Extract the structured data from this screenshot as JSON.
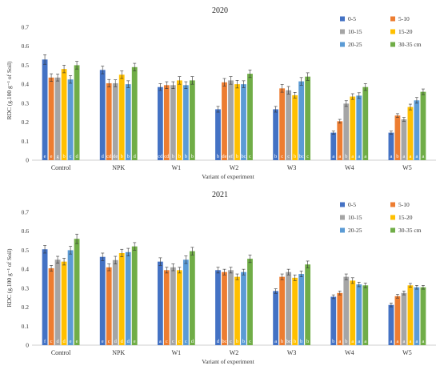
{
  "chart_data": [
    {
      "type": "bar",
      "title": "2020",
      "xlabel": "Variant of experiment",
      "ylabel": "RDC (g.100 g⁻¹ of Soil)",
      "ylim": [
        0,
        0.7
      ],
      "yticks": [
        "0",
        "0.1",
        "0.2",
        "0.3",
        "0.4",
        "0.5",
        "0.6",
        "0.7"
      ],
      "grid": false,
      "legend_position": "top-right",
      "categories": [
        "Control",
        "NPK",
        "W1",
        "W2",
        "W3",
        "W4",
        "W5"
      ],
      "series": [
        {
          "name": "0-5",
          "color": "#4472C4",
          "values": [
            0.53,
            0.475,
            0.385,
            0.268,
            0.268,
            0.145,
            0.145
          ],
          "errors": [
            0.025,
            0.02,
            0.018,
            0.015,
            0.015,
            0.008,
            0.008
          ],
          "letters": [
            "e",
            "d",
            "cd",
            "b",
            "b",
            "a",
            "a"
          ]
        },
        {
          "name": "5-10",
          "color": "#ED7D31",
          "values": [
            0.435,
            0.405,
            0.395,
            0.41,
            0.378,
            0.205,
            0.235
          ],
          "errors": [
            0.02,
            0.02,
            0.018,
            0.02,
            0.02,
            0.01,
            0.01
          ],
          "letters": [
            "e",
            "cd",
            "cd",
            "de",
            "c",
            "a",
            "b"
          ]
        },
        {
          "name": "10-15",
          "color": "#A5A5A5",
          "values": [
            0.435,
            0.405,
            0.395,
            0.42,
            0.368,
            0.298,
            0.215
          ],
          "errors": [
            0.018,
            0.018,
            0.018,
            0.02,
            0.02,
            0.015,
            0.01
          ],
          "letters": [
            "g",
            "de",
            "b",
            "ef",
            "c",
            "b",
            "a"
          ]
        },
        {
          "name": "15-20",
          "color": "#FFC000",
          "values": [
            0.48,
            0.45,
            0.42,
            0.4,
            0.342,
            0.335,
            0.28
          ],
          "errors": [
            0.02,
            0.02,
            0.02,
            0.02,
            0.015,
            0.015,
            0.015
          ],
          "letters": [
            "b",
            "b",
            "b",
            "b",
            "b",
            "a",
            "a"
          ]
        },
        {
          "name": "20-25",
          "color": "#5B9BD5",
          "values": [
            0.425,
            0.4,
            0.395,
            0.4,
            0.415,
            0.34,
            0.315
          ],
          "errors": [
            0.02,
            0.018,
            0.018,
            0.018,
            0.02,
            0.015,
            0.015
          ],
          "letters": [
            "c",
            "b",
            "b",
            "bc",
            "bc",
            "a",
            "a"
          ]
        },
        {
          "name": "30-35 cm",
          "color": "#70AD47",
          "values": [
            0.5,
            0.49,
            0.42,
            0.455,
            0.44,
            0.385,
            0.36
          ],
          "errors": [
            0.02,
            0.02,
            0.02,
            0.02,
            0.02,
            0.018,
            0.015
          ],
          "letters": [
            "d",
            "d",
            "b",
            "c",
            "c",
            "a",
            "a"
          ]
        }
      ]
    },
    {
      "type": "bar",
      "title": "2021",
      "xlabel": "Variant of experiment",
      "ylabel": "RDC (g.100 g⁻¹ of Soil)",
      "ylim": [
        0,
        0.7
      ],
      "yticks": [
        "0",
        "0.1",
        "0.2",
        "0.3",
        "0.4",
        "0.5",
        "0.6",
        "0.7"
      ],
      "grid": false,
      "legend_position": "top-right",
      "categories": [
        "Control",
        "NPK",
        "W1",
        "W2",
        "W3",
        "W4",
        "W5"
      ],
      "series": [
        {
          "name": "0-5",
          "color": "#4472C4",
          "values": [
            0.505,
            0.465,
            0.44,
            0.395,
            0.285,
            0.255,
            0.212
          ],
          "errors": [
            0.02,
            0.02,
            0.02,
            0.015,
            0.012,
            0.01,
            0.01
          ],
          "letters": [
            "f",
            "e",
            "a",
            "d",
            "a",
            "b",
            "a"
          ]
        },
        {
          "name": "5-10",
          "color": "#ED7D31",
          "values": [
            0.405,
            0.41,
            0.395,
            0.385,
            0.36,
            0.275,
            0.258
          ],
          "errors": [
            0.015,
            0.018,
            0.015,
            0.015,
            0.015,
            0.01,
            0.01
          ],
          "letters": [
            "c",
            "c",
            "c",
            "bc",
            "b",
            "a",
            "a"
          ]
        },
        {
          "name": "10-15",
          "color": "#A5A5A5",
          "values": [
            0.45,
            0.448,
            0.41,
            0.395,
            0.385,
            0.36,
            0.275
          ],
          "errors": [
            0.018,
            0.02,
            0.018,
            0.015,
            0.015,
            0.015,
            0.01
          ],
          "letters": [
            "d",
            "d",
            "c",
            "c",
            "bc",
            "b",
            "a"
          ]
        },
        {
          "name": "15-20",
          "color": "#FFC000",
          "values": [
            0.44,
            0.485,
            0.395,
            0.36,
            0.355,
            0.34,
            0.315
          ],
          "errors": [
            0.018,
            0.02,
            0.015,
            0.015,
            0.015,
            0.015,
            0.01
          ],
          "letters": [
            "d",
            "d",
            "c",
            "b",
            "b",
            "a",
            "a"
          ]
        },
        {
          "name": "20-25",
          "color": "#5B9BD5",
          "values": [
            0.5,
            0.49,
            0.45,
            0.385,
            0.375,
            0.32,
            0.305
          ],
          "errors": [
            0.02,
            0.02,
            0.02,
            0.015,
            0.015,
            0.012,
            0.01
          ],
          "letters": [
            "e",
            "d",
            "c",
            "b",
            "b",
            "a",
            "a"
          ]
        },
        {
          "name": "30-35 cm",
          "color": "#70AD47",
          "values": [
            0.56,
            0.52,
            0.495,
            0.455,
            0.425,
            0.315,
            0.305
          ],
          "errors": [
            0.025,
            0.02,
            0.02,
            0.02,
            0.018,
            0.012,
            0.01
          ],
          "letters": [
            "e",
            "e",
            "d",
            "c",
            "b",
            "a",
            "a"
          ]
        }
      ]
    }
  ]
}
